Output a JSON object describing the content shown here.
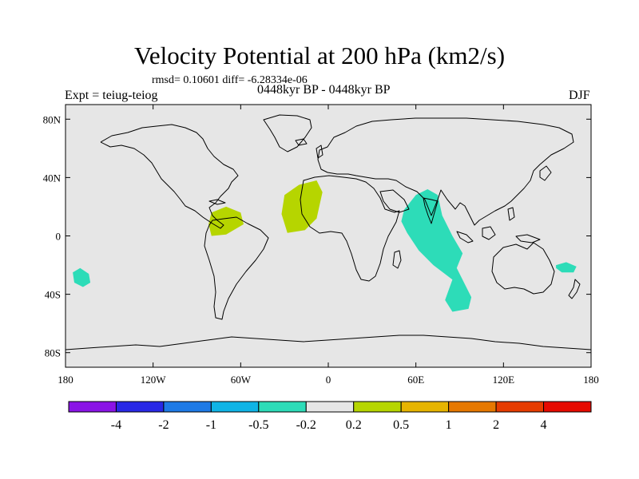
{
  "figure": {
    "title": "Velocity Potential at 200 hPa (km2/s)",
    "stats": "rmsd= 0.10601 diff= -6.28334e-06",
    "experiment": "Expt = teiug-teiog",
    "period": "0448kyr BP - 0448kyr BP",
    "season": "DJF"
  },
  "map_data": {
    "type": "filled-contour-map",
    "projection": "cylindrical-equidistant",
    "lon_range": [
      -180,
      180
    ],
    "lat_range": [
      -90,
      90
    ],
    "background_color": "#e6e6e6",
    "coastline_color": "#000000",
    "x_ticks": [
      {
        "lon": -180,
        "label": "180"
      },
      {
        "lon": -120,
        "label": "120W"
      },
      {
        "lon": -60,
        "label": "60W"
      },
      {
        "lon": 0,
        "label": "0"
      },
      {
        "lon": 60,
        "label": "60E"
      },
      {
        "lon": 120,
        "label": "120E"
      },
      {
        "lon": 180,
        "label": "180"
      }
    ],
    "y_ticks": [
      {
        "lat": 80,
        "label": "80N"
      },
      {
        "lat": 40,
        "label": "40N"
      },
      {
        "lat": 0,
        "label": "0"
      },
      {
        "lat": -40,
        "label": "40S"
      },
      {
        "lat": -80,
        "label": "80S"
      }
    ],
    "anomalies": [
      {
        "name": "west-africa-positive",
        "color": "#b6d500",
        "points": [
          [
            -32,
            15
          ],
          [
            -30,
            28
          ],
          [
            -20,
            35
          ],
          [
            -8,
            38
          ],
          [
            -4,
            30
          ],
          [
            -8,
            12
          ],
          [
            -16,
            4
          ],
          [
            -28,
            2
          ]
        ]
      },
      {
        "name": "south-america-positive",
        "color": "#b6d500",
        "points": [
          [
            -82,
            8
          ],
          [
            -80,
            16
          ],
          [
            -70,
            20
          ],
          [
            -60,
            16
          ],
          [
            -58,
            8
          ],
          [
            -70,
            1
          ],
          [
            -80,
            0
          ]
        ]
      },
      {
        "name": "indian-ocean-negative",
        "color": "#2ddcb8",
        "points": [
          [
            52,
            18
          ],
          [
            60,
            28
          ],
          [
            68,
            32
          ],
          [
            75,
            28
          ],
          [
            78,
            14
          ],
          [
            85,
            0
          ],
          [
            92,
            -12
          ],
          [
            88,
            -22
          ],
          [
            98,
            -42
          ],
          [
            96,
            -50
          ],
          [
            85,
            -52
          ],
          [
            80,
            -44
          ],
          [
            85,
            -30
          ],
          [
            72,
            -20
          ],
          [
            62,
            -10
          ],
          [
            54,
            2
          ],
          [
            50,
            10
          ]
        ]
      },
      {
        "name": "south-pacific-negative",
        "color": "#2ddcb8",
        "points": [
          [
            -175,
            -25
          ],
          [
            -170,
            -22
          ],
          [
            -164,
            -26
          ],
          [
            -163,
            -32
          ],
          [
            -168,
            -35
          ],
          [
            -174,
            -32
          ]
        ]
      },
      {
        "name": "tasman-negative",
        "color": "#2ddcb8",
        "points": [
          [
            156,
            -20
          ],
          [
            163,
            -18
          ],
          [
            170,
            -21
          ],
          [
            168,
            -25
          ],
          [
            160,
            -25
          ],
          [
            156,
            -22
          ]
        ]
      }
    ]
  },
  "colorbar": {
    "labels": [
      "-4",
      "-2",
      "-1",
      "-0.5",
      "-0.2",
      "0.2",
      "0.5",
      "1",
      "2",
      "4"
    ],
    "colors": [
      "#8a14e6",
      "#2828e6",
      "#1e7ae6",
      "#10b4e6",
      "#2ddcb8",
      "#e6e6e6",
      "#b6d500",
      "#e6b400",
      "#e67800",
      "#e63c00",
      "#e60a00"
    ]
  }
}
